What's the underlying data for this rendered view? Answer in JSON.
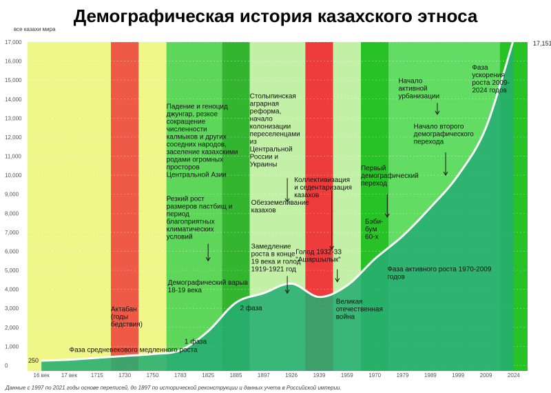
{
  "chart_data": {
    "type": "area",
    "title": "Демографическая история казахского этноса",
    "ylabel": "все казахи мира",
    "ylim": [
      0,
      17000
    ],
    "yticks": [
      "0",
      "1,000",
      "2,000",
      "3,000",
      "4,000",
      "5,000",
      "6,000",
      "7,000",
      "8,000",
      "9,000",
      "10,000",
      "11,000",
      "12,000",
      "13,000",
      "14,000",
      "15,000",
      "16,000",
      "17,000"
    ],
    "categories": [
      "16 век",
      "17 век",
      "1715",
      "1730",
      "1750",
      "1783",
      "1825",
      "1885",
      "1897",
      "1926",
      "1939",
      "1959",
      "1970",
      "1979",
      "1989",
      "1999",
      "2009",
      "2024"
    ],
    "values": [
      250,
      300,
      400,
      500,
      600,
      800,
      1800,
      3300,
      3800,
      4300,
      3600,
      4200,
      5600,
      6800,
      8300,
      10000,
      12500,
      17151
    ],
    "first_label": "250",
    "last_label": "17,151",
    "bands": [
      {
        "from": 0,
        "to": 3,
        "color": "#eef787"
      },
      {
        "from": 3,
        "to": 4,
        "color": "#ef5a47"
      },
      {
        "from": 4,
        "to": 5,
        "color": "#eef787"
      },
      {
        "from": 5,
        "to": 7,
        "color": "#5ed65a"
      },
      {
        "from": 7,
        "to": 8,
        "color": "#33b52f"
      },
      {
        "from": 8,
        "to": 10,
        "color": "#c3f0a7"
      },
      {
        "from": 10,
        "to": 11,
        "color": "#ee3b3b"
      },
      {
        "from": 11,
        "to": 12,
        "color": "#c3f0a7"
      },
      {
        "from": 12,
        "to": 13,
        "color": "#26c226"
      },
      {
        "from": 13,
        "to": 17,
        "color": "#63dc63"
      },
      {
        "from": 17,
        "to": 18,
        "color": "#26c226"
      }
    ],
    "colors": {
      "area": "#27ad72",
      "line": "#ffffff"
    },
    "annotations": [
      {
        "text": [
          "Фаза средневекового медленного роста"
        ],
        "x": 1.5,
        "y": 700
      },
      {
        "text": [
          "1 фаза"
        ],
        "x": 5.65,
        "y": 1150
      },
      {
        "text": [
          "Актабан",
          "(годы",
          "бедствия)"
        ],
        "x": 3.0,
        "y": 2850
      },
      {
        "text": [
          "2 фаза"
        ],
        "x": 7.65,
        "y": 2900
      },
      {
        "text": [
          "Падение и геноцид",
          "джунгар, резкое",
          "сокращение",
          "численности",
          "калмыков и других",
          "соседних народов,",
          "заселение казахскими",
          "родами огромных",
          "просторов",
          "Центральной Азии"
        ],
        "x": 5.0,
        "y": 13500
      },
      {
        "text": [
          "Резкий рост",
          "размеров пастбищ и",
          "период",
          "благоприятных",
          "климатических",
          "условий"
        ],
        "x": 5.0,
        "y": 8650
      },
      {
        "text": [
          "Демографический варыв",
          "18-19 века"
        ],
        "x": 5.05,
        "y": 4250
      },
      {
        "text": [
          "Столыпинская",
          "аграрная",
          "реформа,",
          "начало",
          "колонизации",
          "переселенцами",
          "из",
          "Центральной",
          "России и",
          "Украины"
        ],
        "x": 8.0,
        "y": 14050
      },
      {
        "text": [
          "Обезземеливание",
          "казахов"
        ],
        "x": 8.05,
        "y": 8450
      },
      {
        "text": [
          "Замедление",
          "роста в конце",
          "19 века и голод",
          "1919-1921 год"
        ],
        "x": 8.05,
        "y": 6150
      },
      {
        "text": [
          "Коллективизация",
          "и седентаризация",
          "казахов"
        ],
        "x": 9.6,
        "y": 9650
      },
      {
        "text": [
          "Голод 1932-33",
          "\"Ашаршылык\""
        ],
        "x": 9.65,
        "y": 5850
      },
      {
        "text": [
          "Великая",
          "отечественная",
          "война"
        ],
        "x": 11.1,
        "y": 3250
      },
      {
        "text": [
          "Первый",
          "демографический",
          "переход"
        ],
        "x": 12.0,
        "y": 10250
      },
      {
        "text": [
          "Бэби-",
          "бум",
          "60-х"
        ],
        "x": 12.15,
        "y": 7450
      },
      {
        "text": [
          "Начало",
          "активной",
          "урбанизации"
        ],
        "x": 13.35,
        "y": 14850
      },
      {
        "text": [
          "Начало второго",
          "демографического",
          "перехода"
        ],
        "x": 13.9,
        "y": 12450
      },
      {
        "text": [
          "Фаза активного роста 1970-2009",
          "годов"
        ],
        "x": 12.95,
        "y": 4950
      },
      {
        "text": [
          "Фаза",
          "ускорения",
          "роста 2009-",
          "2024 годов"
        ],
        "x": 16.0,
        "y": 15550
      }
    ],
    "arrows": [
      {
        "x": 6.0,
        "y1": 6400,
        "y2": 5500
      },
      {
        "x": 8.85,
        "y1": 9850,
        "y2": 8600
      },
      {
        "x": 8.85,
        "y1": 4700,
        "y2": 3800
      },
      {
        "x": 10.45,
        "y1": 9200,
        "y2": 6100
      },
      {
        "x": 10.65,
        "y1": 5050,
        "y2": 4400
      },
      {
        "x": 12.45,
        "y1": 9000,
        "y2": 7800
      },
      {
        "x": 14.25,
        "y1": 13800,
        "y2": 13200
      },
      {
        "x": 14.55,
        "y1": 11200,
        "y2": 10000
      }
    ]
  },
  "footnote": "Данные с 1997 по 2021 годы основе переписей, до 1897 по исторической реконструкции и данных учета в Российской империи."
}
